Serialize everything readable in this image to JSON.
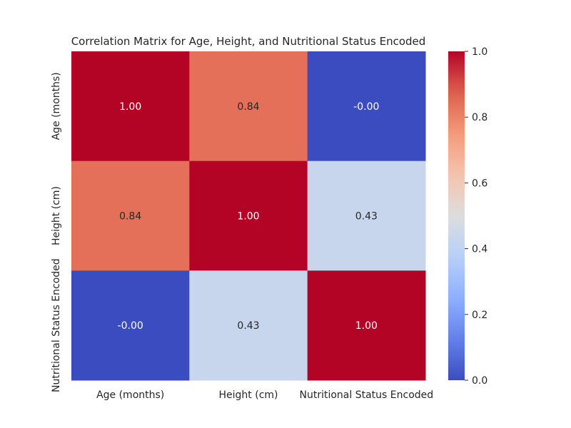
{
  "chart_data": {
    "type": "heatmap",
    "title": "Correlation Matrix for Age, Height, and Nutritional Status Encoded",
    "x_categories": [
      "Age (months)",
      "Height (cm)",
      "Nutritional Status Encoded"
    ],
    "y_categories": [
      "Age (months)",
      "Height (cm)",
      "Nutritional Status Encoded"
    ],
    "values": [
      [
        1.0,
        0.84,
        -0.0
      ],
      [
        0.84,
        1.0,
        0.43
      ],
      [
        -0.0,
        0.43,
        1.0
      ]
    ],
    "cell_labels": [
      [
        "1.00",
        "0.84",
        "-0.00"
      ],
      [
        "0.84",
        "1.00",
        "0.43"
      ],
      [
        "-0.00",
        "0.43",
        "1.00"
      ]
    ],
    "colormap": "coolwarm",
    "color_range": [
      0.0,
      1.0
    ],
    "colorbar_ticks": [
      0.0,
      0.2,
      0.4,
      0.6,
      0.8,
      1.0
    ],
    "colorbar_tick_labels": [
      "0.0",
      "0.2",
      "0.4",
      "0.6",
      "0.8",
      "1.0"
    ],
    "grid": false,
    "legend": "colorbar-right"
  },
  "colors": {
    "cold": "#3b4cc0",
    "neutral": "#dddddd",
    "hot": "#b40426",
    "text_dark": "#262626",
    "text_light": "#ffffff"
  }
}
